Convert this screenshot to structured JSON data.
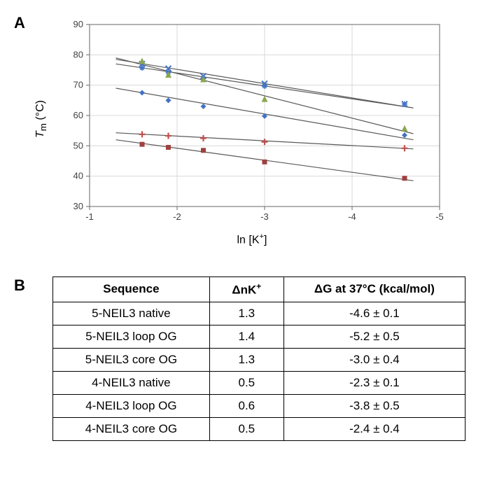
{
  "panelA": {
    "label": "A"
  },
  "panelB": {
    "label": "B"
  },
  "chart": {
    "type": "scatter+line",
    "background_color": "#ffffff",
    "plot_border_color": "#808080",
    "grid_color": "#d9d9d9",
    "tick_color": "#808080",
    "tick_font_size": 13,
    "axis_label_font_size": 16,
    "x_label_html": "ln [K<span class='sup'>+</span>]",
    "y_label_html": "<i>T</i><sub>m</sub> (°C)",
    "xlim": [
      -1,
      -5
    ],
    "ylim": [
      30,
      90
    ],
    "xticks": [
      -1,
      -2,
      -3,
      -4,
      -5
    ],
    "yticks": [
      30,
      40,
      50,
      60,
      70,
      80,
      90
    ],
    "series": [
      {
        "name": "5-NEIL3 native",
        "marker": "diamond",
        "marker_color": "#4472c4",
        "marker_size": 8,
        "line_color": "#595959",
        "line_width": 1.2,
        "x": [
          -1.6,
          -1.9,
          -2.3,
          -3.0,
          -4.6
        ],
        "y": [
          67.5,
          65.0,
          63.0,
          59.8,
          53.5
        ],
        "fit_x": [
          -1.3,
          -4.7
        ],
        "fit_y": [
          69.0,
          52.0
        ]
      },
      {
        "name": "5-NEIL3 loop OG",
        "marker": "x",
        "marker_color": "#4472c4",
        "marker_size": 8,
        "line_color": "#595959",
        "line_width": 1.2,
        "x": [
          -1.6,
          -1.9,
          -2.3,
          -3.0,
          -4.6
        ],
        "y": [
          77.0,
          75.5,
          73.0,
          70.5,
          63.8
        ],
        "fit_x": [
          -1.3,
          -4.7
        ],
        "fit_y": [
          78.5,
          62.5
        ]
      },
      {
        "name": "5-NEIL3 core OG",
        "marker": "asterisk",
        "marker_color": "#4472c4",
        "marker_size": 8,
        "line_color": "#595959",
        "line_width": 1.2,
        "x": [
          -1.6,
          -1.9,
          -2.3,
          -3.0,
          -4.6
        ],
        "y": [
          75.7,
          74.2,
          72.2,
          69.7,
          63.8
        ],
        "fit_x": [
          -1.3,
          -4.7
        ],
        "fit_y": [
          77.0,
          62.5
        ]
      },
      {
        "name": "4-NEIL3 native",
        "marker": "square",
        "marker_color": "#a04040",
        "marker_size": 7,
        "line_color": "#595959",
        "line_width": 1.2,
        "x": [
          -1.6,
          -1.9,
          -2.3,
          -3.0,
          -4.6
        ],
        "y": [
          50.5,
          49.5,
          48.5,
          44.7,
          39.3
        ],
        "fit_x": [
          -1.3,
          -4.7
        ],
        "fit_y": [
          52.0,
          38.5
        ]
      },
      {
        "name": "4-NEIL3 loop OG",
        "marker": "triangle",
        "marker_color": "#8aa84f",
        "marker_size": 9,
        "line_color": "#595959",
        "line_width": 1.2,
        "x": [
          -1.6,
          -1.9,
          -2.3,
          -3.0,
          -4.6
        ],
        "y": [
          78.0,
          73.5,
          72.0,
          65.5,
          55.8
        ],
        "fit_x": [
          -1.3,
          -4.7
        ],
        "fit_y": [
          79.0,
          54.0
        ]
      },
      {
        "name": "4-NEIL3 core OG",
        "marker": "plus",
        "marker_color": "#c0504d",
        "marker_size": 9,
        "line_color": "#595959",
        "line_width": 1.2,
        "x": [
          -1.6,
          -1.9,
          -2.3,
          -3.0,
          -4.6
        ],
        "y": [
          53.8,
          53.3,
          52.5,
          51.3,
          49.2
        ],
        "fit_x": [
          -1.3,
          -4.7
        ],
        "fit_y": [
          54.3,
          49.0
        ]
      }
    ]
  },
  "table": {
    "columns": [
      "Sequence",
      "ΔnK+",
      "ΔG at 37°C (kcal/mol)"
    ],
    "col_widths": [
      "38%",
      "18%",
      "44%"
    ],
    "header_font_size": 17,
    "cell_font_size": 17,
    "rows": [
      [
        "5-NEIL3 native",
        "1.3",
        "-4.6 ± 0.1"
      ],
      [
        "5-NEIL3 loop OG",
        "1.4",
        "-5.2 ± 0.5"
      ],
      [
        "5-NEIL3 core OG",
        "1.3",
        "-3.0 ± 0.4"
      ],
      [
        "4-NEIL3 native",
        "0.5",
        "-2.3 ± 0.1"
      ],
      [
        "4-NEIL3 loop OG",
        "0.6",
        "-3.8 ± 0.5"
      ],
      [
        "4-NEIL3 core OG",
        "0.5",
        "-2.4 ± 0.4"
      ]
    ]
  }
}
